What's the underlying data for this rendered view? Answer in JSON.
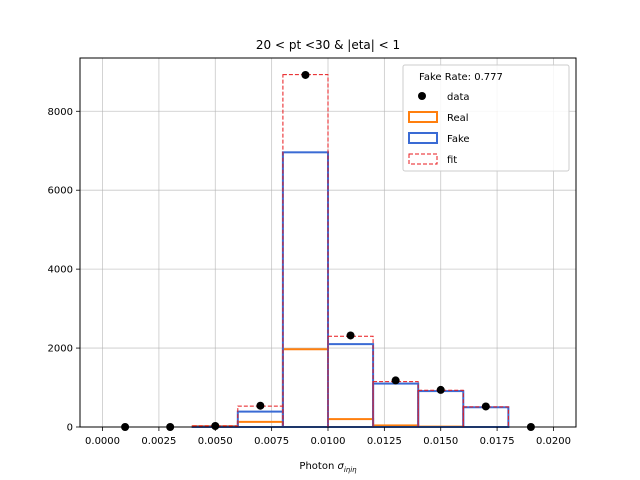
{
  "chart_data": {
    "type": "bar",
    "title": "20 < pt <30 & |eta| < 1",
    "xlabel_prefix": "Photon ",
    "xlabel_symbol": "σ",
    "xlabel_subscript": "iηiη",
    "ylabel": "",
    "xlim": [
      -0.001,
      0.021
    ],
    "ylim": [
      0,
      9350
    ],
    "xticks": [
      0.0,
      0.0025,
      0.005,
      0.0075,
      0.01,
      0.0125,
      0.015,
      0.0175,
      0.02
    ],
    "xtick_labels": [
      "0.0000",
      "0.0025",
      "0.0050",
      "0.0075",
      "0.0100",
      "0.0125",
      "0.0150",
      "0.0175",
      "0.0200"
    ],
    "yticks": [
      0,
      2000,
      4000,
      6000,
      8000
    ],
    "ytick_labels": [
      "0",
      "2000",
      "4000",
      "6000",
      "8000"
    ],
    "grid": true,
    "legend_position": "top-right",
    "legend_header": "Fake Rate: 0.777",
    "bin_edges": [
      0.0,
      0.002,
      0.004,
      0.006,
      0.008,
      0.01,
      0.012,
      0.014,
      0.016,
      0.018,
      0.02
    ],
    "series": [
      {
        "name": "data",
        "kind": "scatter",
        "color": "#000000",
        "x": [
          0.001,
          0.003,
          0.005,
          0.007,
          0.009,
          0.011,
          0.013,
          0.015,
          0.017,
          0.019
        ],
        "values": [
          0,
          0,
          25,
          540,
          8920,
          2320,
          1180,
          940,
          520,
          0
        ]
      },
      {
        "name": "Real",
        "kind": "step",
        "color": "#ff7f0e",
        "values": [
          0,
          0,
          20,
          130,
          1970,
          200,
          40,
          10,
          0,
          0
        ]
      },
      {
        "name": "Fake",
        "kind": "step",
        "color": "#3a6bd4",
        "values": [
          0,
          0,
          10,
          390,
          6960,
          2100,
          1100,
          910,
          500,
          0
        ]
      },
      {
        "name": "fit",
        "kind": "step-dashed",
        "color": "#e8191c",
        "values": [
          0,
          0,
          30,
          530,
          8930,
          2300,
          1150,
          930,
          510,
          0
        ]
      }
    ]
  }
}
